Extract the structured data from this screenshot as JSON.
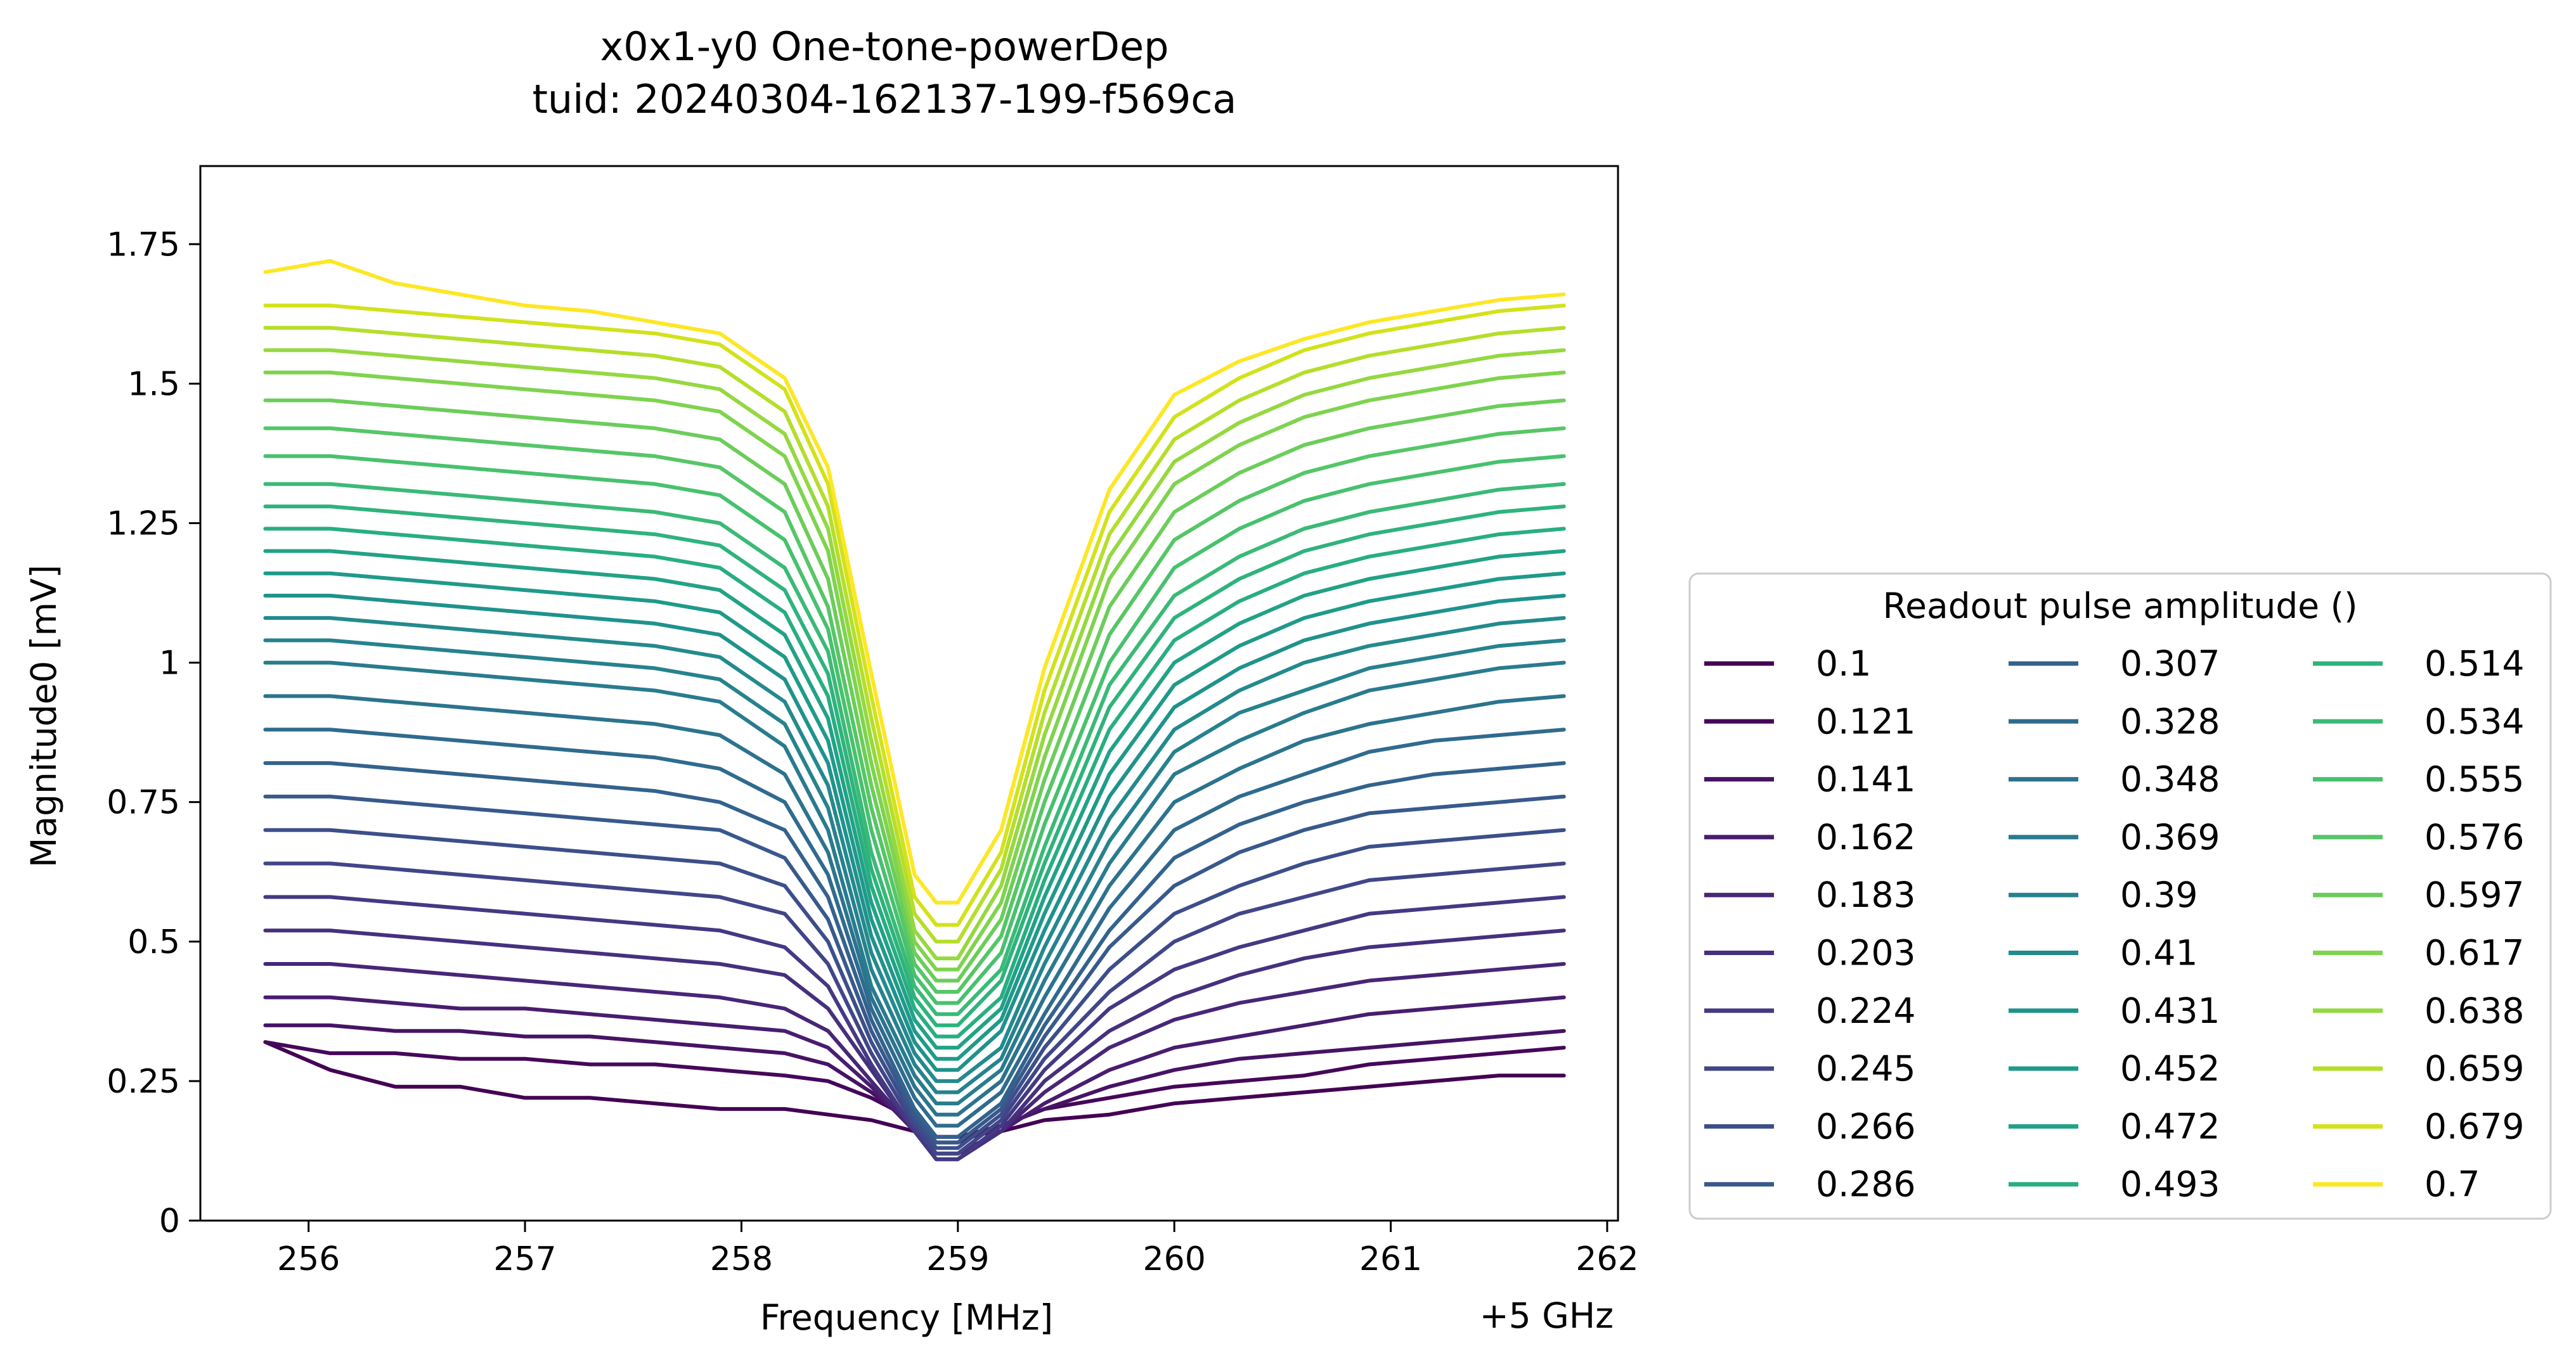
{
  "chart_data": {
    "type": "line",
    "title": "x0x1-y0 One-tone-powerDep",
    "subtitle": "tuid: 20240304-162137-199-f569ca",
    "xlabel": "Frequency [MHz]",
    "x_offset_label": "+5 GHz",
    "ylabel": "Magnitude0 [mV]",
    "xlim": [
      255.5,
      262.05
    ],
    "ylim": [
      0,
      1.89
    ],
    "x_ticks": [
      "256",
      "257",
      "258",
      "259",
      "260",
      "261",
      "262"
    ],
    "y_ticks": [
      "0",
      "0.25",
      "0.5",
      "0.75",
      "1",
      "1.25",
      "1.5",
      "1.75"
    ],
    "x": [
      255.8,
      256.1,
      256.4,
      256.7,
      257.0,
      257.3,
      257.6,
      257.9,
      258.2,
      258.4,
      258.6,
      258.8,
      258.9,
      259.0,
      259.2,
      259.4,
      259.7,
      260.0,
      260.3,
      260.6,
      260.9,
      261.2,
      261.5,
      261.8
    ],
    "colormap": "viridis",
    "legend": {
      "title": "Readout pulse amplitude ()",
      "placement": "right, outside plot",
      "columns": 3
    },
    "series": [
      {
        "name": "0.1",
        "color": "#440154",
        "values": [
          0.32,
          0.27,
          0.24,
          0.24,
          0.22,
          0.22,
          0.21,
          0.2,
          0.2,
          0.19,
          0.18,
          0.16,
          0.15,
          0.15,
          0.16,
          0.18,
          0.19,
          0.21,
          0.22,
          0.23,
          0.24,
          0.25,
          0.26,
          0.26
        ]
      },
      {
        "name": "0.121",
        "color": "#46075a",
        "values": [
          0.32,
          0.3,
          0.3,
          0.29,
          0.29,
          0.28,
          0.28,
          0.27,
          0.26,
          0.25,
          0.22,
          0.18,
          0.15,
          0.15,
          0.17,
          0.2,
          0.22,
          0.24,
          0.25,
          0.26,
          0.28,
          0.29,
          0.3,
          0.31
        ]
      },
      {
        "name": "0.141",
        "color": "#471365",
        "values": [
          0.35,
          0.35,
          0.34,
          0.34,
          0.33,
          0.33,
          0.32,
          0.31,
          0.3,
          0.28,
          0.23,
          0.17,
          0.14,
          0.14,
          0.17,
          0.2,
          0.24,
          0.27,
          0.29,
          0.3,
          0.31,
          0.32,
          0.33,
          0.34
        ]
      },
      {
        "name": "0.162",
        "color": "#481d6f",
        "values": [
          0.4,
          0.4,
          0.39,
          0.38,
          0.38,
          0.37,
          0.36,
          0.35,
          0.34,
          0.31,
          0.24,
          0.16,
          0.12,
          0.12,
          0.16,
          0.21,
          0.27,
          0.31,
          0.33,
          0.35,
          0.37,
          0.38,
          0.39,
          0.4
        ]
      },
      {
        "name": "0.183",
        "color": "#482677",
        "values": [
          0.46,
          0.46,
          0.45,
          0.44,
          0.43,
          0.42,
          0.41,
          0.4,
          0.38,
          0.34,
          0.25,
          0.16,
          0.12,
          0.12,
          0.16,
          0.23,
          0.31,
          0.36,
          0.39,
          0.41,
          0.43,
          0.44,
          0.45,
          0.46
        ]
      },
      {
        "name": "0.203",
        "color": "#46307e",
        "values": [
          0.52,
          0.52,
          0.51,
          0.5,
          0.49,
          0.48,
          0.47,
          0.46,
          0.44,
          0.38,
          0.27,
          0.16,
          0.11,
          0.11,
          0.16,
          0.25,
          0.34,
          0.4,
          0.44,
          0.47,
          0.49,
          0.5,
          0.51,
          0.52
        ]
      },
      {
        "name": "0.224",
        "color": "#443983",
        "values": [
          0.58,
          0.58,
          0.57,
          0.56,
          0.55,
          0.54,
          0.53,
          0.52,
          0.49,
          0.42,
          0.28,
          0.16,
          0.11,
          0.11,
          0.17,
          0.27,
          0.38,
          0.45,
          0.49,
          0.52,
          0.55,
          0.56,
          0.57,
          0.58
        ]
      },
      {
        "name": "0.245",
        "color": "#404688",
        "values": [
          0.64,
          0.64,
          0.63,
          0.62,
          0.61,
          0.6,
          0.59,
          0.58,
          0.55,
          0.46,
          0.3,
          0.17,
          0.12,
          0.12,
          0.18,
          0.29,
          0.41,
          0.5,
          0.55,
          0.58,
          0.61,
          0.62,
          0.63,
          0.64
        ]
      },
      {
        "name": "0.266",
        "color": "#3c4f8a",
        "values": [
          0.7,
          0.7,
          0.69,
          0.68,
          0.67,
          0.66,
          0.65,
          0.64,
          0.6,
          0.5,
          0.32,
          0.18,
          0.13,
          0.13,
          0.19,
          0.31,
          0.45,
          0.55,
          0.6,
          0.64,
          0.67,
          0.68,
          0.69,
          0.7
        ]
      },
      {
        "name": "0.286",
        "color": "#38598c",
        "values": [
          0.76,
          0.76,
          0.75,
          0.74,
          0.73,
          0.72,
          0.71,
          0.7,
          0.65,
          0.54,
          0.34,
          0.19,
          0.14,
          0.14,
          0.2,
          0.33,
          0.49,
          0.6,
          0.66,
          0.7,
          0.73,
          0.74,
          0.75,
          0.76
        ]
      },
      {
        "name": "0.307",
        "color": "#33628d",
        "values": [
          0.82,
          0.82,
          0.81,
          0.8,
          0.79,
          0.78,
          0.77,
          0.75,
          0.7,
          0.58,
          0.36,
          0.2,
          0.15,
          0.15,
          0.21,
          0.35,
          0.52,
          0.65,
          0.71,
          0.75,
          0.78,
          0.8,
          0.81,
          0.82
        ]
      },
      {
        "name": "0.328",
        "color": "#2f6b8e",
        "values": [
          0.88,
          0.88,
          0.87,
          0.86,
          0.85,
          0.84,
          0.83,
          0.81,
          0.75,
          0.62,
          0.38,
          0.22,
          0.17,
          0.17,
          0.23,
          0.37,
          0.56,
          0.7,
          0.76,
          0.8,
          0.84,
          0.86,
          0.87,
          0.88
        ]
      },
      {
        "name": "0.348",
        "color": "#2c738e",
        "values": [
          0.94,
          0.94,
          0.93,
          0.92,
          0.91,
          0.9,
          0.89,
          0.87,
          0.8,
          0.66,
          0.4,
          0.24,
          0.19,
          0.19,
          0.25,
          0.4,
          0.6,
          0.75,
          0.81,
          0.86,
          0.89,
          0.91,
          0.93,
          0.94
        ]
      },
      {
        "name": "0.369",
        "color": "#297b8e",
        "values": [
          1.0,
          1.0,
          0.99,
          0.98,
          0.97,
          0.96,
          0.95,
          0.93,
          0.85,
          0.7,
          0.42,
          0.26,
          0.21,
          0.21,
          0.27,
          0.43,
          0.64,
          0.8,
          0.86,
          0.91,
          0.95,
          0.97,
          0.99,
          1.0
        ]
      },
      {
        "name": "0.39",
        "color": "#26828e",
        "values": [
          1.04,
          1.04,
          1.03,
          1.02,
          1.01,
          1.0,
          0.99,
          0.97,
          0.89,
          0.74,
          0.45,
          0.28,
          0.23,
          0.23,
          0.29,
          0.46,
          0.68,
          0.84,
          0.91,
          0.95,
          0.99,
          1.01,
          1.03,
          1.04
        ]
      },
      {
        "name": "0.41",
        "color": "#238a8d",
        "values": [
          1.08,
          1.08,
          1.07,
          1.06,
          1.05,
          1.04,
          1.03,
          1.01,
          0.93,
          0.78,
          0.48,
          0.3,
          0.25,
          0.25,
          0.31,
          0.49,
          0.72,
          0.88,
          0.95,
          1.0,
          1.03,
          1.05,
          1.07,
          1.08
        ]
      },
      {
        "name": "0.431",
        "color": "#1f928c",
        "values": [
          1.12,
          1.12,
          1.11,
          1.1,
          1.09,
          1.08,
          1.07,
          1.05,
          0.97,
          0.82,
          0.51,
          0.32,
          0.27,
          0.27,
          0.34,
          0.52,
          0.76,
          0.92,
          0.99,
          1.04,
          1.07,
          1.09,
          1.11,
          1.12
        ]
      },
      {
        "name": "0.452",
        "color": "#1f9a8a",
        "values": [
          1.16,
          1.16,
          1.15,
          1.14,
          1.13,
          1.12,
          1.11,
          1.09,
          1.01,
          0.86,
          0.54,
          0.34,
          0.29,
          0.29,
          0.36,
          0.55,
          0.8,
          0.96,
          1.03,
          1.08,
          1.11,
          1.13,
          1.15,
          1.16
        ]
      },
      {
        "name": "0.472",
        "color": "#21a286",
        "values": [
          1.2,
          1.2,
          1.19,
          1.18,
          1.17,
          1.16,
          1.15,
          1.13,
          1.05,
          0.9,
          0.57,
          0.36,
          0.31,
          0.31,
          0.38,
          0.58,
          0.84,
          1.0,
          1.07,
          1.12,
          1.15,
          1.17,
          1.19,
          1.2
        ]
      },
      {
        "name": "0.493",
        "color": "#28ae80",
        "values": [
          1.24,
          1.24,
          1.23,
          1.22,
          1.21,
          1.2,
          1.19,
          1.17,
          1.09,
          0.94,
          0.6,
          0.38,
          0.33,
          0.33,
          0.4,
          0.61,
          0.88,
          1.04,
          1.11,
          1.16,
          1.19,
          1.21,
          1.23,
          1.24
        ]
      },
      {
        "name": "0.514",
        "color": "#2eb37c",
        "values": [
          1.28,
          1.28,
          1.27,
          1.26,
          1.25,
          1.24,
          1.23,
          1.21,
          1.13,
          0.98,
          0.63,
          0.4,
          0.35,
          0.35,
          0.43,
          0.64,
          0.92,
          1.08,
          1.15,
          1.2,
          1.23,
          1.25,
          1.27,
          1.28
        ]
      },
      {
        "name": "0.534",
        "color": "#3aba76",
        "values": [
          1.32,
          1.32,
          1.31,
          1.3,
          1.29,
          1.28,
          1.27,
          1.25,
          1.17,
          1.02,
          0.66,
          0.42,
          0.37,
          0.37,
          0.45,
          0.67,
          0.96,
          1.12,
          1.19,
          1.24,
          1.27,
          1.29,
          1.31,
          1.32
        ]
      },
      {
        "name": "0.555",
        "color": "#48c16e",
        "values": [
          1.37,
          1.37,
          1.36,
          1.35,
          1.34,
          1.33,
          1.32,
          1.3,
          1.22,
          1.06,
          0.7,
          0.44,
          0.39,
          0.39,
          0.48,
          0.71,
          1.0,
          1.17,
          1.24,
          1.29,
          1.32,
          1.34,
          1.36,
          1.37
        ]
      },
      {
        "name": "0.576",
        "color": "#56c667",
        "values": [
          1.42,
          1.42,
          1.41,
          1.4,
          1.39,
          1.38,
          1.37,
          1.35,
          1.27,
          1.1,
          0.74,
          0.46,
          0.41,
          0.41,
          0.51,
          0.75,
          1.05,
          1.22,
          1.29,
          1.34,
          1.37,
          1.39,
          1.41,
          1.42
        ]
      },
      {
        "name": "0.597",
        "color": "#6ccd5a",
        "values": [
          1.47,
          1.47,
          1.46,
          1.45,
          1.44,
          1.43,
          1.42,
          1.4,
          1.32,
          1.15,
          0.78,
          0.48,
          0.43,
          0.43,
          0.54,
          0.79,
          1.1,
          1.27,
          1.34,
          1.39,
          1.42,
          1.44,
          1.46,
          1.47
        ]
      },
      {
        "name": "0.617",
        "color": "#7fd34e",
        "values": [
          1.52,
          1.52,
          1.51,
          1.5,
          1.49,
          1.48,
          1.47,
          1.45,
          1.37,
          1.2,
          0.82,
          0.5,
          0.45,
          0.45,
          0.57,
          0.83,
          1.15,
          1.32,
          1.39,
          1.44,
          1.47,
          1.49,
          1.51,
          1.52
        ]
      },
      {
        "name": "0.638",
        "color": "#95d840",
        "values": [
          1.56,
          1.56,
          1.55,
          1.54,
          1.53,
          1.52,
          1.51,
          1.49,
          1.41,
          1.24,
          0.86,
          0.52,
          0.47,
          0.47,
          0.6,
          0.87,
          1.19,
          1.36,
          1.43,
          1.48,
          1.51,
          1.53,
          1.55,
          1.56
        ]
      },
      {
        "name": "0.659",
        "color": "#b5de2b",
        "values": [
          1.6,
          1.6,
          1.59,
          1.58,
          1.57,
          1.56,
          1.55,
          1.53,
          1.45,
          1.28,
          0.9,
          0.55,
          0.5,
          0.5,
          0.63,
          0.91,
          1.23,
          1.4,
          1.47,
          1.52,
          1.55,
          1.57,
          1.59,
          1.6
        ]
      },
      {
        "name": "0.679",
        "color": "#d2e21b",
        "values": [
          1.64,
          1.64,
          1.63,
          1.62,
          1.61,
          1.6,
          1.59,
          1.57,
          1.49,
          1.32,
          0.94,
          0.58,
          0.53,
          0.53,
          0.66,
          0.95,
          1.27,
          1.44,
          1.51,
          1.56,
          1.59,
          1.61,
          1.63,
          1.64
        ]
      },
      {
        "name": "0.7",
        "color": "#fde725",
        "values": [
          1.7,
          1.72,
          1.68,
          1.66,
          1.64,
          1.63,
          1.61,
          1.59,
          1.51,
          1.35,
          0.98,
          0.62,
          0.57,
          0.57,
          0.7,
          0.99,
          1.31,
          1.48,
          1.54,
          1.58,
          1.61,
          1.63,
          1.65,
          1.66
        ]
      }
    ]
  }
}
